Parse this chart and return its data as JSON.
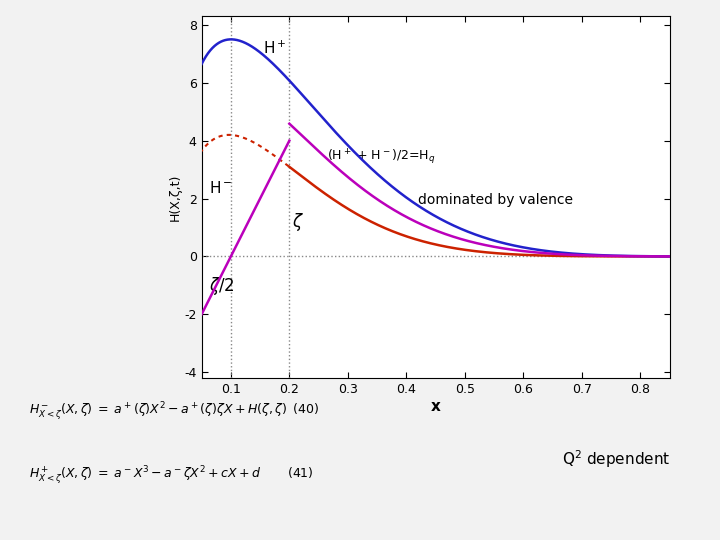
{
  "fig_bg": "#f2f2f2",
  "plot_bg": "#ffffff",
  "xlim": [
    0.05,
    0.85
  ],
  "ylim": [
    -4.2,
    8.3
  ],
  "xticks": [
    0.1,
    0.2,
    0.3,
    0.4,
    0.5,
    0.6,
    0.7,
    0.8
  ],
  "yticks": [
    -4,
    -2,
    0,
    2,
    4,
    6,
    8
  ],
  "xlabel": "x",
  "ylabel": "H(X,ζ,t)",
  "zeta": 0.2,
  "H_plus_color": "#2222cc",
  "H_minus_color": "#cc2200",
  "Hq_color": "#bb00bb",
  "linear_color": "#bb00bb",
  "gray": "#888888",
  "label_Hplus": "H$^+$",
  "label_Hminus": "H$^-$",
  "label_Hq": "(H$^+$ + H$^-$)/2=H$_q$",
  "label_zeta": "$\\zeta$",
  "label_zeta2": "$\\zeta$/2",
  "label_dominated": "dominated by valence",
  "label_Q2": "Q$^2$ dependent"
}
